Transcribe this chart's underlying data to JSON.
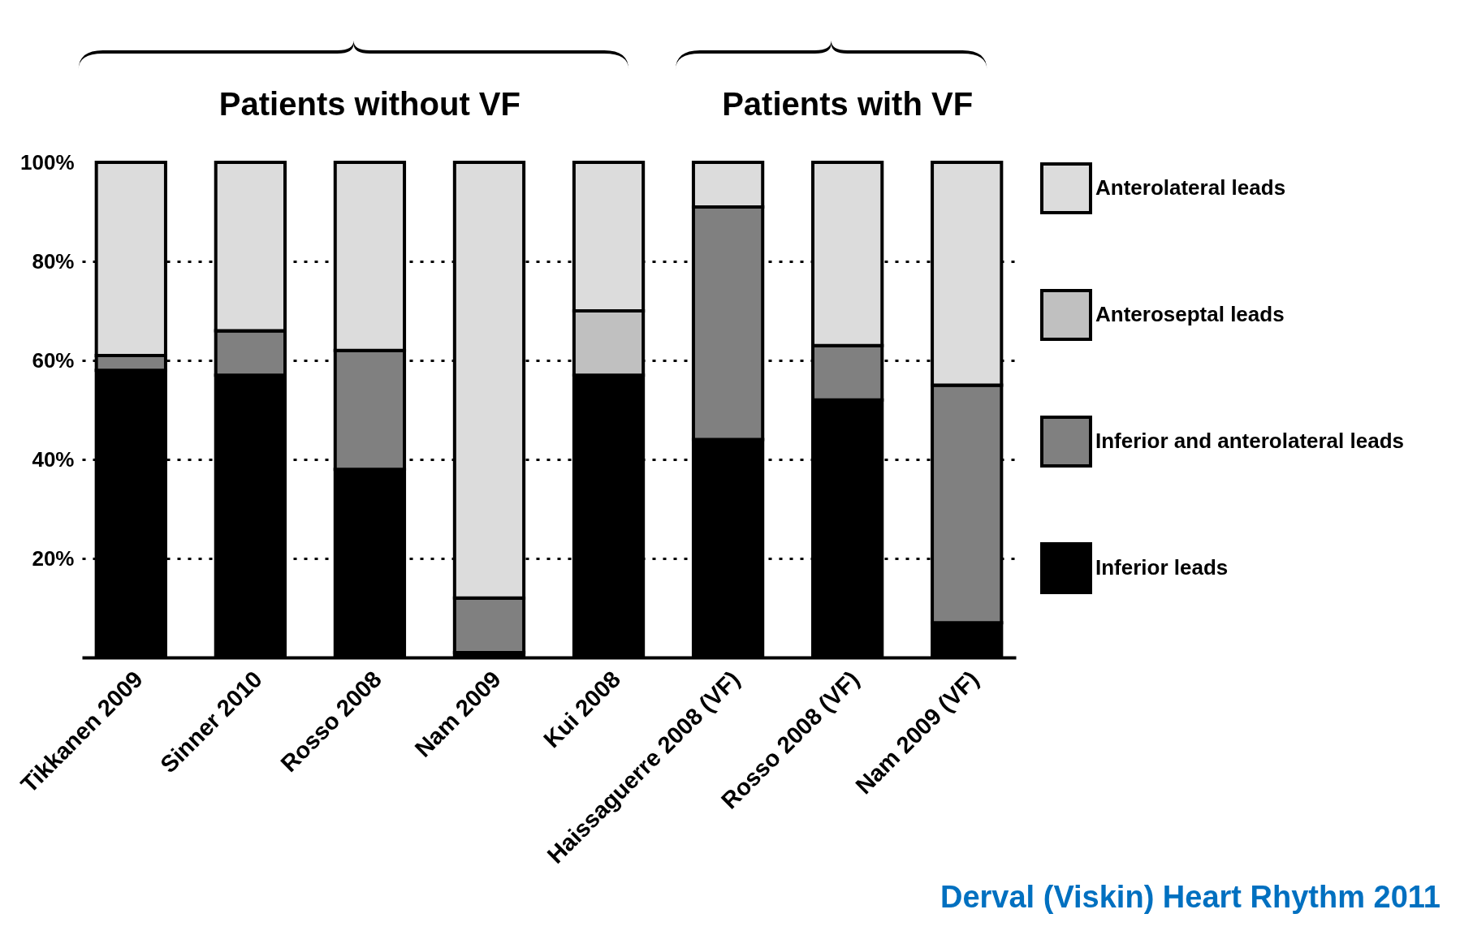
{
  "chart_data": {
    "type": "bar",
    "stacked": true,
    "categories": [
      "Tikkanen 2009",
      "Sinner 2010",
      "Rosso 2008",
      "Nam 2009",
      "Kui 2008",
      "Haissaguerre  2008 (VF)",
      "Rosso 2008 (VF)",
      "Nam 2009 (VF)"
    ],
    "series": [
      {
        "name": "Inferior leads",
        "color": "#000000",
        "values": [
          58,
          57,
          38,
          1,
          57,
          44,
          52,
          7
        ]
      },
      {
        "name": "Inferior and anterolateral leads",
        "color": "#808080",
        "values": [
          3,
          9,
          24,
          11,
          0,
          47,
          11,
          48
        ]
      },
      {
        "name": "Anteroseptal leads",
        "color": "#c0c0c0",
        "values": [
          0,
          0,
          0,
          0,
          13,
          0,
          0,
          0
        ]
      },
      {
        "name": "Anterolateral leads",
        "color": "#dcdcdc",
        "values": [
          39,
          34,
          38,
          88,
          30,
          9,
          37,
          45
        ]
      }
    ],
    "ylim": [
      0,
      100
    ],
    "yticks": [
      {
        "value": 20,
        "label": "20%"
      },
      {
        "value": 40,
        "label": "40%"
      },
      {
        "value": 60,
        "label": "60%"
      },
      {
        "value": 80,
        "label": "80%"
      },
      {
        "value": 100,
        "label": "100%"
      }
    ],
    "grid": "y",
    "legend": "right",
    "annotations": [
      "Patients without VF",
      "Patients with VF",
      "Derval (Viskin) Heart Rhythm 2011"
    ]
  }
}
